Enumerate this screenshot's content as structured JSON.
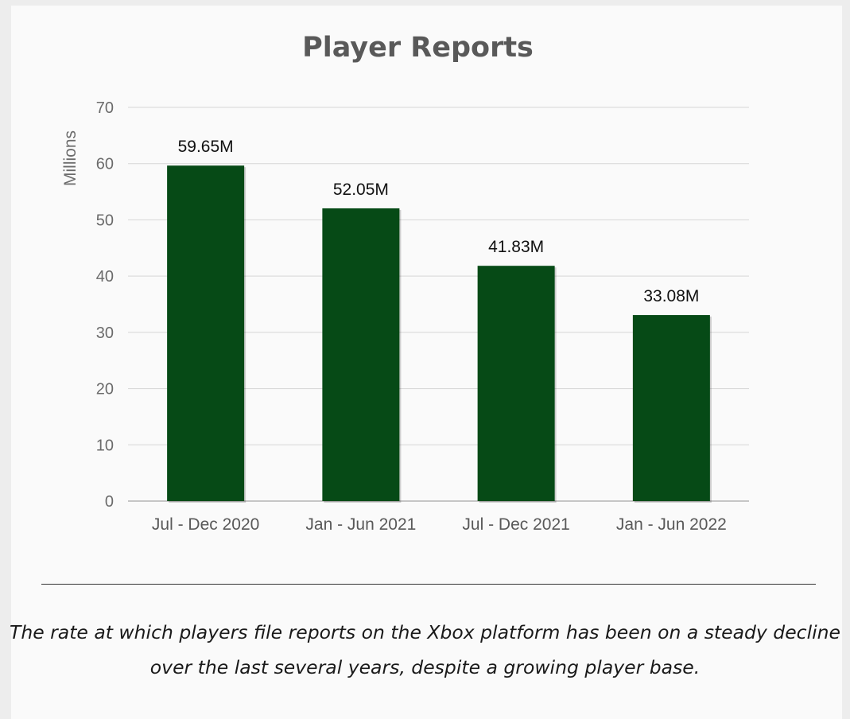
{
  "chart_data": {
    "type": "bar",
    "title": "Player Reports",
    "xlabel": "",
    "ylabel": "Millions",
    "categories": [
      "Jul - Dec 2020",
      "Jan - Jun 2021",
      "Jul - Dec 2021",
      "Jan - Jun 2022"
    ],
    "values": [
      59.65,
      52.05,
      41.83,
      33.08
    ],
    "data_labels": [
      "59.65M",
      "52.05M",
      "41.83M",
      "33.08M"
    ],
    "yticks": [
      0,
      10,
      20,
      30,
      40,
      50,
      60,
      70
    ],
    "ylim": [
      0,
      70
    ],
    "grid": true,
    "bar_color": "#064a16"
  },
  "caption": "The rate at which players file reports on the Xbox platform has been on a steady decline over the last several years, despite a growing player base."
}
